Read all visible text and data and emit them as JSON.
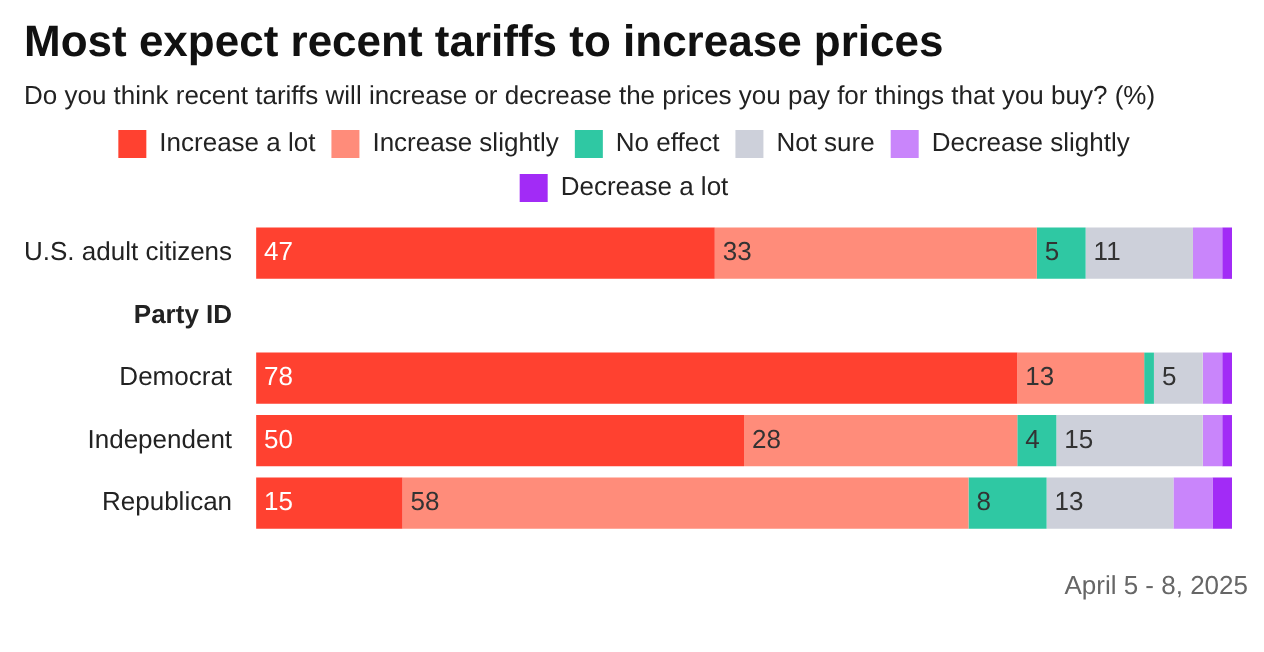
{
  "chart_data": {
    "type": "bar",
    "orientation": "horizontal",
    "stacked": true,
    "title": "Most expect recent tariffs to increase prices",
    "subtitle": "Do you think recent tariffs will increase or decrease the prices you pay for things that you buy? (%)",
    "categories": [
      "U.S. adult citizens",
      "Party ID",
      "Democrat",
      "Independent",
      "Republican"
    ],
    "series": [
      {
        "name": "Increase a lot",
        "color": "#ff4130",
        "values": [
          47,
          null,
          78,
          50,
          15
        ],
        "value_labels": [
          "47",
          null,
          "78",
          "50",
          "15"
        ]
      },
      {
        "name": "Increase slightly",
        "color": "#ff8c7a",
        "values": [
          33,
          null,
          13,
          28,
          58
        ],
        "value_labels": [
          "33",
          null,
          "13",
          "28",
          "58"
        ]
      },
      {
        "name": "No effect",
        "color": "#2fc8a3",
        "values": [
          5,
          null,
          1,
          4,
          8
        ],
        "value_labels": [
          "5",
          null,
          null,
          "4",
          "8"
        ]
      },
      {
        "name": "Not sure",
        "color": "#cdd0da",
        "values": [
          11,
          null,
          5,
          15,
          13
        ],
        "value_labels": [
          "11",
          null,
          "5",
          "15",
          "13"
        ]
      },
      {
        "name": "Decrease slightly",
        "color": "#c985fb",
        "values": [
          3,
          null,
          2,
          2,
          4
        ]
      },
      {
        "name": "Decrease a lot",
        "color": "#a22bf6",
        "values": [
          1,
          null,
          1,
          1,
          2
        ]
      }
    ],
    "xlim": [
      0,
      100
    ],
    "tick_labels": "y",
    "legend": "top",
    "annotations": [
      "April 5 - 8, 2025"
    ]
  }
}
